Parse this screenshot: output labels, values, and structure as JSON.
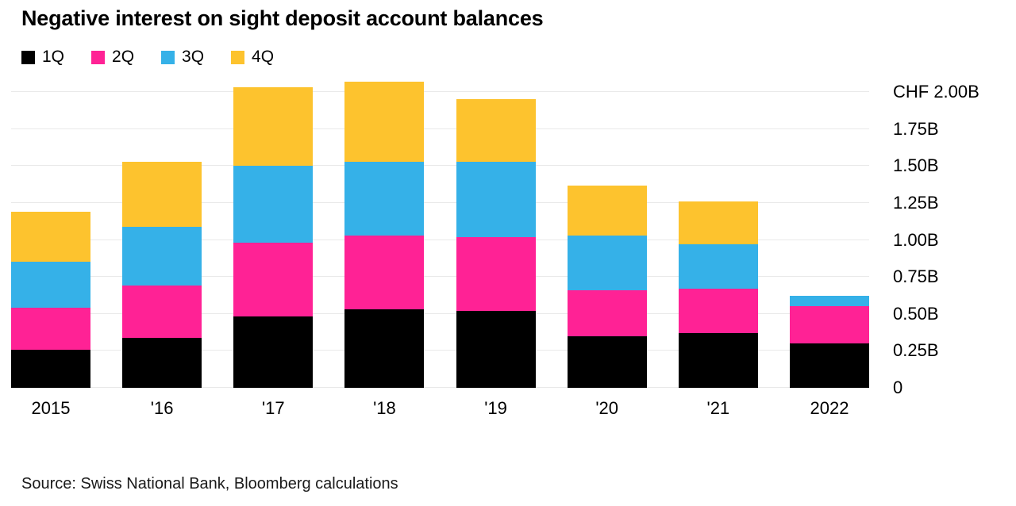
{
  "title": "Negative interest on sight deposit account balances",
  "source": "Source: Swiss National Bank, Bloomberg calculations",
  "colors": {
    "q1": "#000000",
    "q2": "#ff2295",
    "q3": "#35b1e8",
    "q4": "#fdc32e",
    "gridline": "#e9e9e9",
    "background": "#ffffff",
    "text": "#000000"
  },
  "legend": [
    {
      "label": "1Q",
      "color": "#000000"
    },
    {
      "label": "2Q",
      "color": "#ff2295"
    },
    {
      "label": "3Q",
      "color": "#35b1e8"
    },
    {
      "label": "4Q",
      "color": "#fdc32e"
    }
  ],
  "chart_data": {
    "type": "bar",
    "stacked": true,
    "title": "Negative interest on sight deposit account balances",
    "xlabel": "",
    "ylabel": "CHF billions",
    "ylim": [
      0,
      2.0
    ],
    "grid": true,
    "legend_position": "top-left",
    "categories": [
      "2015",
      "'16",
      "'17",
      "'18",
      "'19",
      "'20",
      "'21",
      "2022"
    ],
    "series": [
      {
        "name": "1Q",
        "color": "#000000",
        "values": [
          0.26,
          0.34,
          0.48,
          0.53,
          0.52,
          0.35,
          0.37,
          0.3
        ]
      },
      {
        "name": "2Q",
        "color": "#ff2295",
        "values": [
          0.28,
          0.35,
          0.5,
          0.5,
          0.5,
          0.31,
          0.3,
          0.25
        ]
      },
      {
        "name": "3Q",
        "color": "#35b1e8",
        "values": [
          0.31,
          0.4,
          0.52,
          0.5,
          0.51,
          0.37,
          0.3,
          0.07
        ]
      },
      {
        "name": "4Q",
        "color": "#fdc32e",
        "values": [
          0.34,
          0.44,
          0.53,
          0.54,
          0.42,
          0.34,
          0.29,
          0.0
        ]
      }
    ],
    "totals": [
      1.19,
      1.53,
      2.03,
      2.07,
      1.95,
      1.37,
      1.26,
      0.62
    ],
    "y_ticks": [
      {
        "label": "CHF 2.00B",
        "value": 2.0
      },
      {
        "label": "1.75B",
        "value": 1.75
      },
      {
        "label": "1.50B",
        "value": 1.5
      },
      {
        "label": "1.25B",
        "value": 1.25
      },
      {
        "label": "1.00B",
        "value": 1.0
      },
      {
        "label": "0.75B",
        "value": 0.75
      },
      {
        "label": "0.50B",
        "value": 0.5
      },
      {
        "label": "0.25B",
        "value": 0.25
      },
      {
        "label": "0",
        "value": 0
      }
    ]
  }
}
